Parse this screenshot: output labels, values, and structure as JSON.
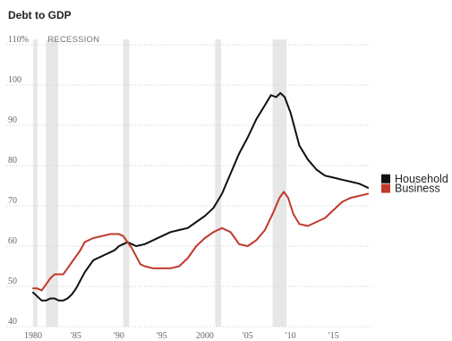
{
  "chart_data": {
    "type": "line",
    "title": "Debt to GDP",
    "xlabel": "",
    "ylabel": "",
    "xlim": [
      1980,
      2019.3
    ],
    "ylim": [
      40,
      110
    ],
    "x_ticks": [
      {
        "value": 1980,
        "label": "1980"
      },
      {
        "value": 1985,
        "label": "'85"
      },
      {
        "value": 1990,
        "label": "'90"
      },
      {
        "value": 1995,
        "label": "'95"
      },
      {
        "value": 2000,
        "label": "2000"
      },
      {
        "value": 2005,
        "label": "'05"
      },
      {
        "value": 2010,
        "label": "'10"
      },
      {
        "value": 2015,
        "label": "'15"
      }
    ],
    "y_ticks": [
      {
        "value": 110,
        "label": "110%"
      },
      {
        "value": 100,
        "label": "100"
      },
      {
        "value": 90,
        "label": "90"
      },
      {
        "value": 80,
        "label": "80"
      },
      {
        "value": 70,
        "label": "70"
      },
      {
        "value": 60,
        "label": "60"
      },
      {
        "value": 50,
        "label": "50"
      },
      {
        "value": 40,
        "label": "40"
      }
    ],
    "grid": true,
    "recession_label": "RECESSION",
    "recessions": [
      [
        1980.0,
        1980.5
      ],
      [
        1981.5,
        1982.9
      ],
      [
        1990.5,
        1991.2
      ],
      [
        2001.2,
        2001.9
      ],
      [
        2007.9,
        2009.5
      ]
    ],
    "legend_position": "right",
    "series": [
      {
        "name": "Household",
        "color": "#111111",
        "points": [
          [
            1980.0,
            48.5
          ],
          [
            1980.5,
            47.5
          ],
          [
            1981.0,
            46.5
          ],
          [
            1981.5,
            46.5
          ],
          [
            1982.0,
            47.0
          ],
          [
            1982.5,
            47.0
          ],
          [
            1983.0,
            46.5
          ],
          [
            1983.5,
            46.5
          ],
          [
            1984.0,
            47.0
          ],
          [
            1984.5,
            48.0
          ],
          [
            1985.0,
            49.5
          ],
          [
            1985.5,
            51.5
          ],
          [
            1986.0,
            53.5
          ],
          [
            1986.5,
            55.0
          ],
          [
            1987.0,
            56.5
          ],
          [
            1987.5,
            57.0
          ],
          [
            1988.0,
            57.5
          ],
          [
            1988.5,
            58.0
          ],
          [
            1989.0,
            58.5
          ],
          [
            1989.5,
            59.0
          ],
          [
            1990.0,
            60.0
          ],
          [
            1990.5,
            60.5
          ],
          [
            1991.0,
            61.0
          ],
          [
            1991.5,
            60.5
          ],
          [
            1992.0,
            60.0
          ],
          [
            1993.0,
            60.5
          ],
          [
            1994.0,
            61.5
          ],
          [
            1995.0,
            62.5
          ],
          [
            1996.0,
            63.5
          ],
          [
            1997.0,
            64.0
          ],
          [
            1998.0,
            64.5
          ],
          [
            1999.0,
            66.0
          ],
          [
            2000.0,
            67.5
          ],
          [
            2001.0,
            69.5
          ],
          [
            2002.0,
            73.0
          ],
          [
            2003.0,
            78.0
          ],
          [
            2004.0,
            83.0
          ],
          [
            2005.0,
            87.0
          ],
          [
            2006.0,
            91.5
          ],
          [
            2007.0,
            95.0
          ],
          [
            2007.7,
            97.5
          ],
          [
            2008.3,
            97.0
          ],
          [
            2008.8,
            98.0
          ],
          [
            2009.3,
            97.0
          ],
          [
            2010.0,
            93.0
          ],
          [
            2010.5,
            89.0
          ],
          [
            2011.0,
            85.0
          ],
          [
            2012.0,
            81.5
          ],
          [
            2013.0,
            79.0
          ],
          [
            2014.0,
            77.5
          ],
          [
            2015.0,
            77.0
          ],
          [
            2016.0,
            76.5
          ],
          [
            2017.0,
            76.0
          ],
          [
            2018.0,
            75.5
          ],
          [
            2018.5,
            75.0
          ],
          [
            2019.0,
            74.5
          ]
        ]
      },
      {
        "name": "Business",
        "color": "#c0392b",
        "points": [
          [
            1980.0,
            49.5
          ],
          [
            1980.5,
            49.5
          ],
          [
            1981.0,
            49.0
          ],
          [
            1981.5,
            50.5
          ],
          [
            1982.0,
            52.0
          ],
          [
            1982.5,
            53.0
          ],
          [
            1983.0,
            53.0
          ],
          [
            1983.5,
            53.0
          ],
          [
            1984.0,
            54.5
          ],
          [
            1984.5,
            56.0
          ],
          [
            1985.0,
            57.5
          ],
          [
            1985.5,
            59.0
          ],
          [
            1986.0,
            61.0
          ],
          [
            1987.0,
            62.0
          ],
          [
            1988.0,
            62.5
          ],
          [
            1989.0,
            63.0
          ],
          [
            1990.0,
            63.0
          ],
          [
            1990.5,
            62.5
          ],
          [
            1991.0,
            61.0
          ],
          [
            1991.5,
            59.5
          ],
          [
            1992.0,
            57.5
          ],
          [
            1992.5,
            55.5
          ],
          [
            1993.0,
            55.0
          ],
          [
            1994.0,
            54.5
          ],
          [
            1995.0,
            54.5
          ],
          [
            1996.0,
            54.5
          ],
          [
            1997.0,
            55.0
          ],
          [
            1998.0,
            57.0
          ],
          [
            1999.0,
            60.0
          ],
          [
            2000.0,
            62.0
          ],
          [
            2001.0,
            63.5
          ],
          [
            2002.0,
            64.5
          ],
          [
            2003.0,
            63.5
          ],
          [
            2003.5,
            62.0
          ],
          [
            2004.0,
            60.5
          ],
          [
            2005.0,
            60.0
          ],
          [
            2006.0,
            61.5
          ],
          [
            2007.0,
            64.0
          ],
          [
            2008.0,
            68.5
          ],
          [
            2008.7,
            72.0
          ],
          [
            2009.2,
            73.5
          ],
          [
            2009.7,
            72.0
          ],
          [
            2010.3,
            68.0
          ],
          [
            2011.0,
            65.5
          ],
          [
            2012.0,
            65.0
          ],
          [
            2013.0,
            66.0
          ],
          [
            2014.0,
            67.0
          ],
          [
            2015.0,
            69.0
          ],
          [
            2016.0,
            71.0
          ],
          [
            2017.0,
            72.0
          ],
          [
            2018.0,
            72.5
          ],
          [
            2019.0,
            73.0
          ]
        ]
      }
    ]
  }
}
